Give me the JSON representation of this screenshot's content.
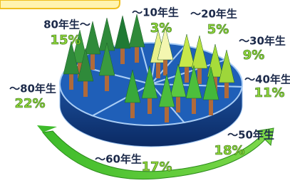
{
  "chart_data": {
    "type": "pie",
    "categories": [
      "～10年生",
      "～20年生",
      "～30年生",
      "～40年生",
      "～50年生",
      "～60年生",
      "～80年生",
      "80年生～"
    ],
    "values": [
      3,
      5,
      9,
      11,
      18,
      17,
      22,
      15
    ],
    "value_labels": [
      "3%",
      "5%",
      "9%",
      "11%",
      "18%",
      "17%",
      "22%",
      "15%"
    ],
    "color": "#1f5fb8"
  }
}
